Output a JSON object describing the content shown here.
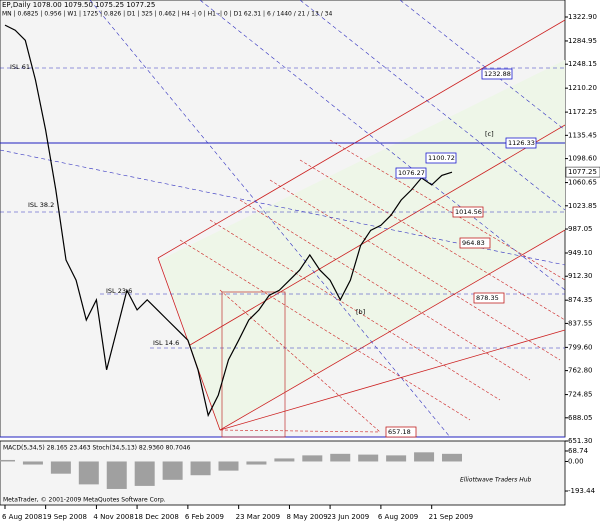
{
  "chart_data": {
    "type": "line",
    "title": "EP,Daily  1078.00 1079.50 1075.25 1077.25",
    "subtitle": "MN | 0.6825 | 0.956 | W1 | 1725 | 0.826 | D1 | 325 | 0.462 | H4 -| 0 | H1 -| 0 | D1 62.31 | 6 / 1440 / 21 / 13 / 34",
    "color": "#000000",
    "categories": [
      "6 Aug 2008",
      null,
      null,
      null,
      "19 Sep 2008",
      null,
      null,
      null,
      null,
      "4 Nov 2008",
      null,
      null,
      null,
      "18 Dec 2008",
      null,
      null,
      null,
      null,
      "6 Feb 2009",
      null,
      null,
      null,
      null,
      "23 Mar 2009",
      null,
      null,
      null,
      null,
      "8 May 2009",
      null,
      null,
      null,
      "23 Jun 2009",
      null,
      null,
      null,
      null,
      "6 Aug 2009",
      null,
      null,
      null,
      null,
      "21 Sep 2009",
      null,
      null
    ],
    "values": [
      1310,
      1302,
      1286,
      1223,
      1144,
      1049,
      938,
      906,
      843,
      875,
      764,
      827,
      890,
      859,
      875,
      859,
      843,
      827,
      811,
      764,
      692,
      724,
      780,
      811,
      843,
      859,
      882,
      890,
      906,
      922,
      946,
      922,
      906,
      875,
      906,
      961,
      985,
      993,
      1009,
      1033,
      1049,
      1068,
      1057,
      1072,
      1077
    ],
    "ylim": [
      645,
      1350
    ],
    "yticks": [
      {
        "value": 1322.9,
        "label": "1322.90"
      },
      {
        "value": 1284.95,
        "label": "1284.95"
      },
      {
        "value": 1248.15,
        "label": "1248.15"
      },
      {
        "value": 1210.2,
        "label": "1210.20"
      },
      {
        "value": 1172.25,
        "label": "1172.25"
      },
      {
        "value": 1135.45,
        "label": "1135.45"
      },
      {
        "value": 1098.6,
        "label": "1098.60"
      },
      {
        "value": 1060.65,
        "label": "1060.65"
      },
      {
        "value": 1023.85,
        "label": "1023.85"
      },
      {
        "value": 987.05,
        "label": "987.05"
      },
      {
        "value": 949.1,
        "label": "949.10"
      },
      {
        "value": 912.3,
        "label": "912.30"
      },
      {
        "value": 874.35,
        "label": "874.35"
      },
      {
        "value": 837.55,
        "label": "837.55"
      },
      {
        "value": 799.6,
        "label": "799.60"
      },
      {
        "value": 762.8,
        "label": "762.80"
      },
      {
        "value": 724.85,
        "label": "724.85"
      },
      {
        "value": 688.05,
        "label": "688.05"
      },
      {
        "value": 651.3,
        "label": "651.30"
      }
    ],
    "last_price": {
      "value": 1077.25,
      "label": "1077.25"
    },
    "annotations": [
      "1232.88",
      "1126.33",
      "1100.72",
      "1076.27",
      "1014.56",
      "964.83",
      "878.35",
      "657.18",
      "ISL 61",
      "ISL 38.2",
      "ISL 23.6",
      "ISL 14.6",
      "[c]",
      "[b]",
      "MetaTrader, © 2001-2009 MetaQuotes Software Corp.",
      "Elliottwave Traders Hub"
    ],
    "macd": {
      "label": "MACD(5,34,5) 28.165 23.463  Stoch(34,5,13) 82.9360 80.7046",
      "color": "#a0a0a0",
      "values": [
        10,
        -20,
        -80,
        -150,
        -180,
        -160,
        -120,
        -90,
        -60,
        -20,
        20,
        40,
        50,
        45,
        40,
        60,
        50
      ],
      "ylim": [
        -285,
        121
      ],
      "yticks": [
        {
          "value": 68.74,
          "label": "68.74"
        },
        {
          "value": 0,
          "label": "0.00"
        },
        {
          "value": -193.44,
          "label": "-193.44"
        }
      ]
    }
  }
}
